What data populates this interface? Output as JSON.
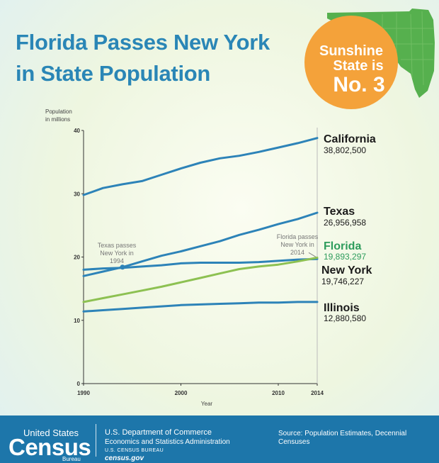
{
  "title": {
    "line1": "Florida Passes New York",
    "line2": "in State Population"
  },
  "badge": {
    "line1": "Sunshine",
    "line2": "State is",
    "line3": "No. 3"
  },
  "colors": {
    "title": "#2a86b6",
    "line": "#2d83b8",
    "florida_line": "#8dc152",
    "florida_label": "#2e9c5c",
    "badge": "#f4a23a",
    "map": "#56b04e",
    "footer": "#1d76aa"
  },
  "chart_data": {
    "type": "line",
    "ylabel_lines": [
      "Population",
      "in millions"
    ],
    "xlabel": "Year",
    "xlim": [
      1990,
      2014
    ],
    "ylim": [
      0,
      40
    ],
    "xticks": [
      1990,
      2000,
      2010,
      2014
    ],
    "yticks": [
      0,
      10,
      20,
      30,
      40
    ],
    "x": [
      1990,
      1992,
      1994,
      1996,
      1998,
      2000,
      2002,
      2004,
      2006,
      2008,
      2010,
      2012,
      2014
    ],
    "series": [
      {
        "name": "California",
        "value_label": "38,802,500",
        "values": [
          29.8,
          30.9,
          31.5,
          32.0,
          33.0,
          34.0,
          34.9,
          35.6,
          36.0,
          36.6,
          37.3,
          38.0,
          38.8
        ]
      },
      {
        "name": "Texas",
        "value_label": "26,956,958",
        "values": [
          17.0,
          17.7,
          18.4,
          19.3,
          20.2,
          20.9,
          21.7,
          22.5,
          23.5,
          24.3,
          25.2,
          26.0,
          27.0
        ]
      },
      {
        "name": "Florida",
        "value_label": "19,893,297",
        "values": [
          12.9,
          13.5,
          14.1,
          14.7,
          15.3,
          16.0,
          16.7,
          17.4,
          18.1,
          18.5,
          18.8,
          19.3,
          19.9
        ]
      },
      {
        "name": "New York",
        "value_label": "19,746,227",
        "values": [
          18.0,
          18.2,
          18.3,
          18.5,
          18.7,
          19.0,
          19.1,
          19.1,
          19.1,
          19.2,
          19.4,
          19.6,
          19.7
        ]
      },
      {
        "name": "Illinois",
        "value_label": "12,880,580",
        "values": [
          11.4,
          11.6,
          11.8,
          12.0,
          12.2,
          12.4,
          12.5,
          12.6,
          12.7,
          12.8,
          12.8,
          12.9,
          12.9
        ]
      }
    ],
    "annotations": [
      {
        "lines": [
          "Texas passes",
          "New York in",
          "1994"
        ],
        "x": 1994,
        "y": 18.4
      },
      {
        "lines": [
          "Florida passes",
          "New York in",
          "2014"
        ],
        "x": 2014,
        "y": 19.8
      }
    ]
  },
  "footer": {
    "logo_line1": "United States",
    "logo_line2": "Census",
    "logo_line3": "Bureau",
    "dept": "U.S. Department of Commerce",
    "esa": "Economics and Statistics Administration",
    "bureau": "U.S. CENSUS BUREAU",
    "site": "census.gov",
    "source": "Source: Population Estimates, Decennial Censuses"
  }
}
